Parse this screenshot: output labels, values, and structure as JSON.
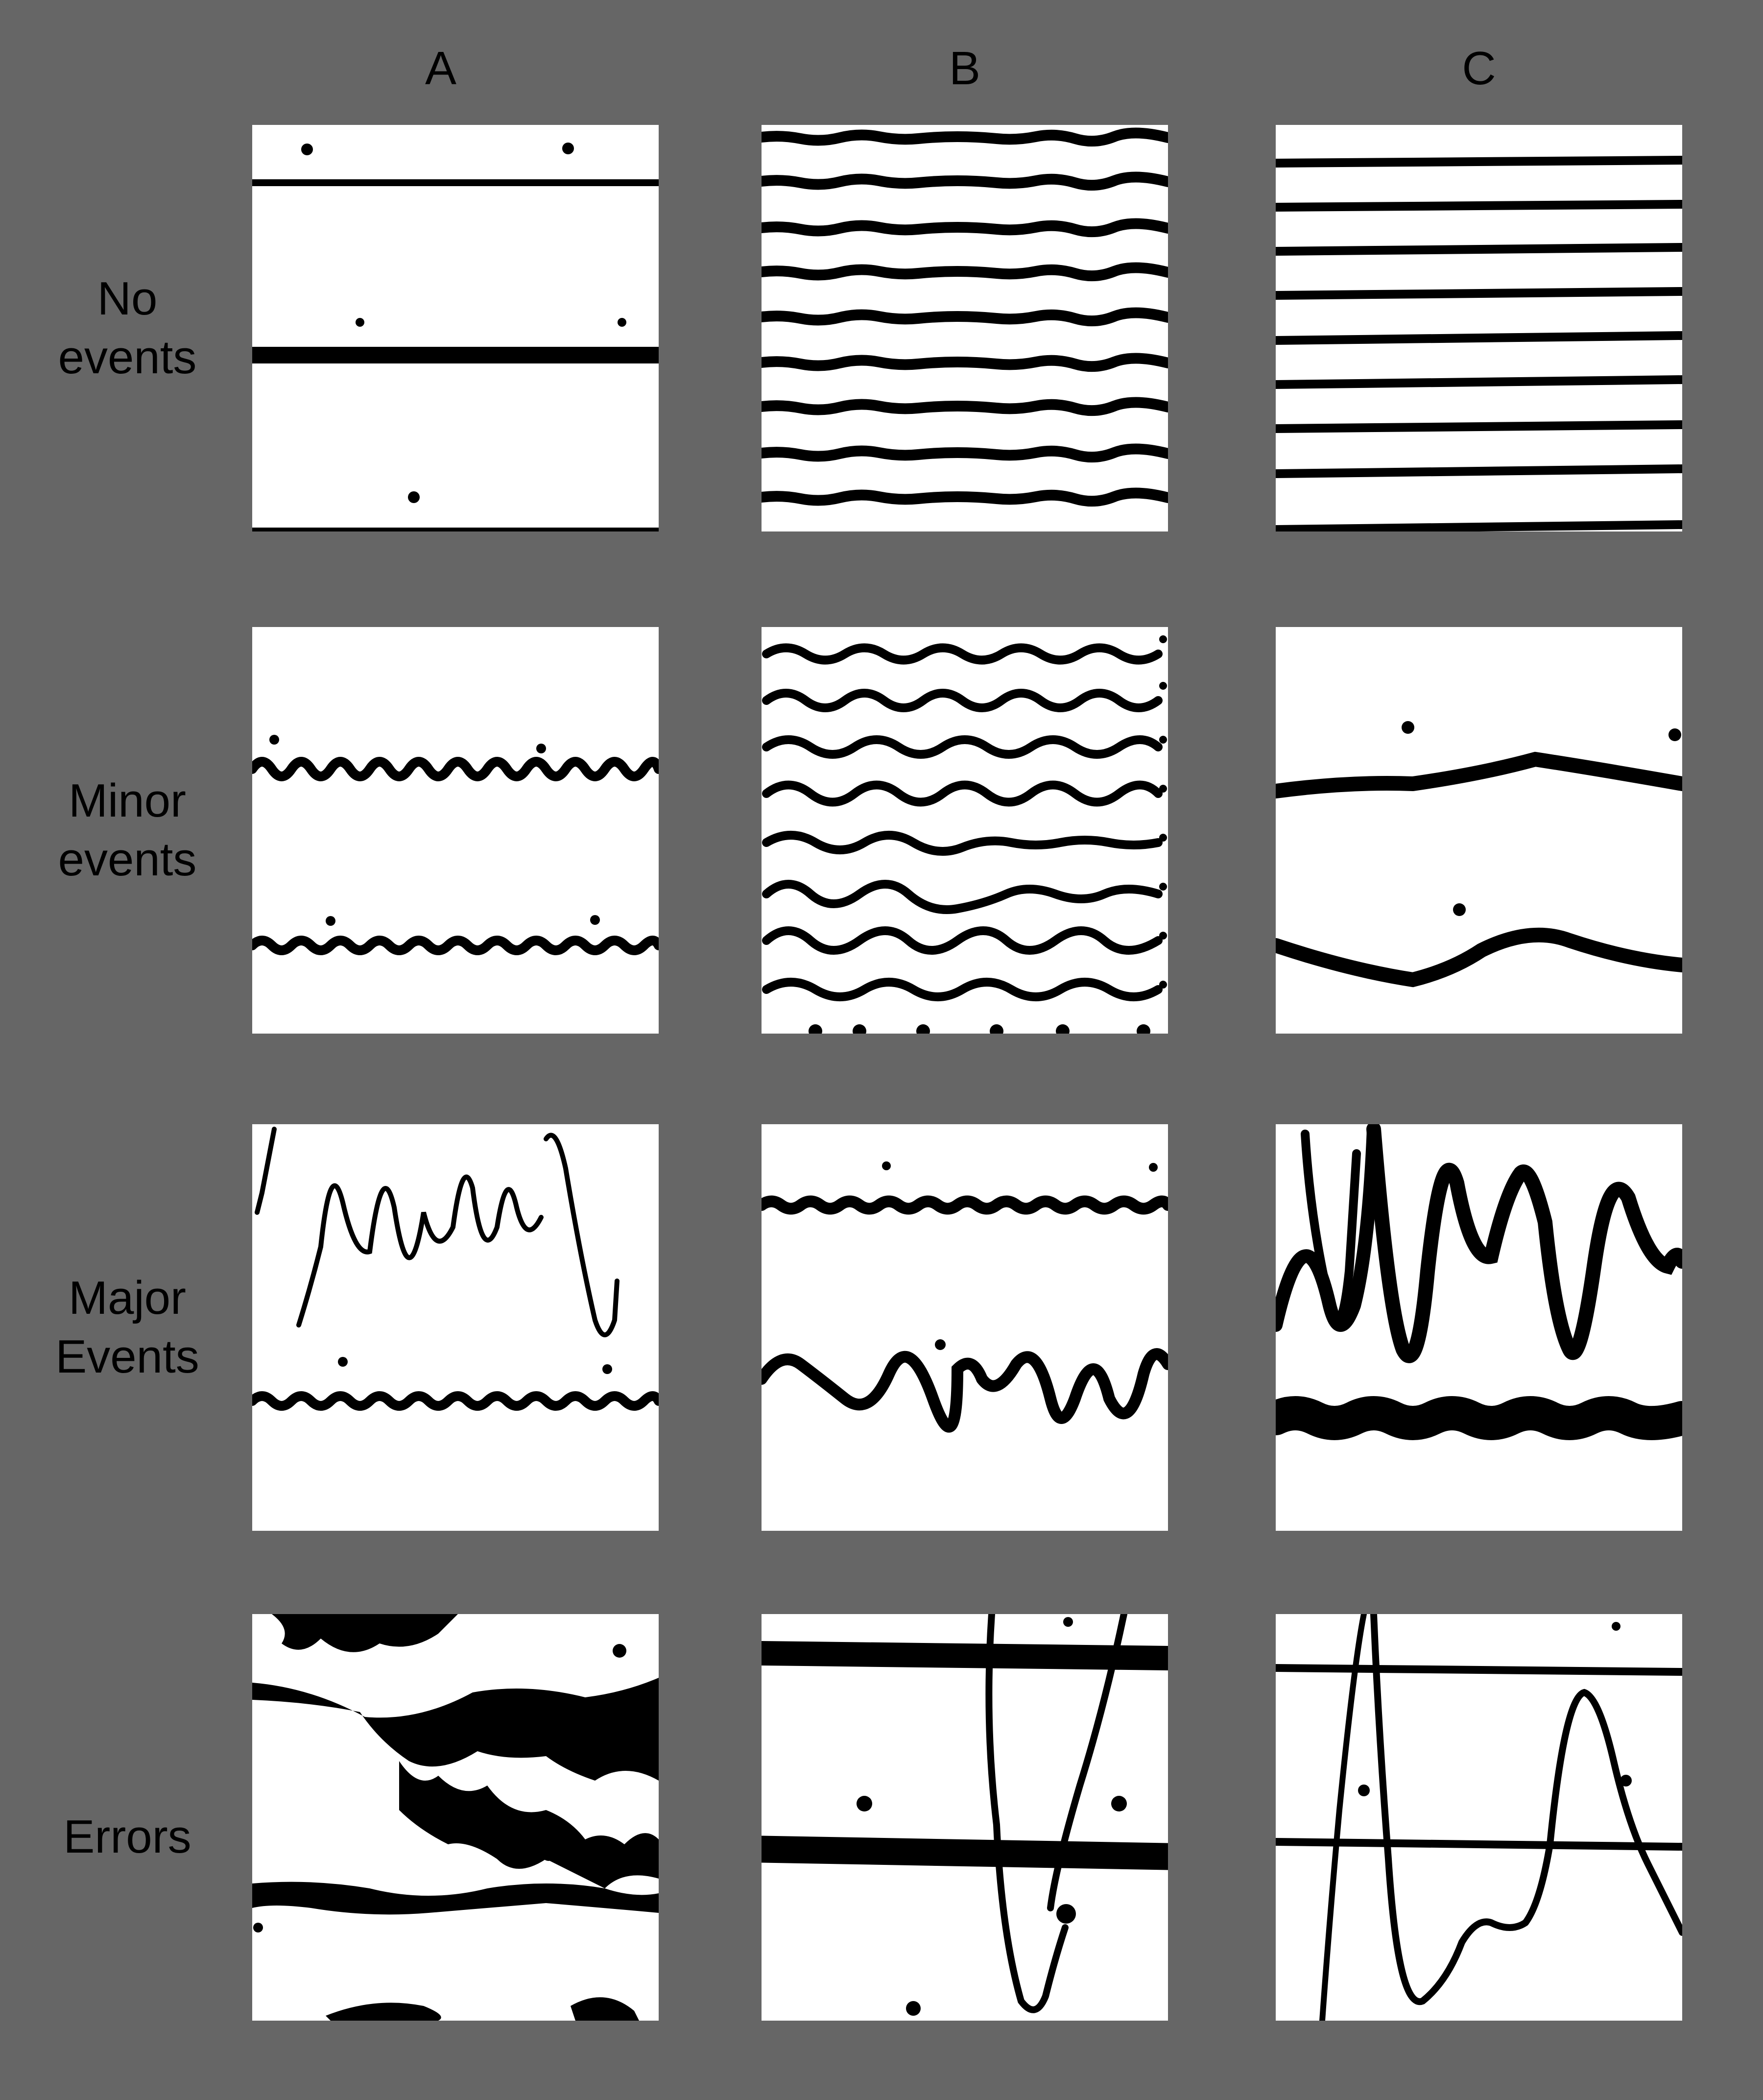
{
  "columns": [
    "A",
    "B",
    "C"
  ],
  "rows": [
    {
      "line1": "No",
      "line2": "events"
    },
    {
      "line1": "Minor",
      "line2": "events"
    },
    {
      "line1": "Major",
      "line2": "Events"
    },
    {
      "line1": "Errors",
      "line2": ""
    }
  ],
  "colors": {
    "background": "#666666",
    "panel": "#ffffff",
    "ink": "#000000"
  }
}
